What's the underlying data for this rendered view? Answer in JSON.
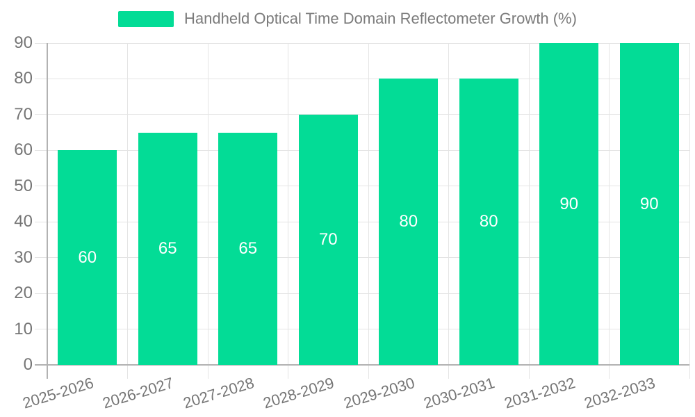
{
  "chart_data": {
    "type": "bar",
    "title": "Handheld Optical Time Domain Reflectometer Growth (%)",
    "categories": [
      "2025-2026",
      "2026-2027",
      "2027-2028",
      "2028-2029",
      "2029-2030",
      "2030-2031",
      "2031-2032",
      "2032-2033"
    ],
    "series": [
      {
        "name": "Handheld Optical Time Domain Reflectometer Growth (%)",
        "values": [
          60,
          65,
          65,
          70,
          80,
          80,
          90,
          90
        ]
      }
    ],
    "y_ticks": [
      0,
      10,
      20,
      30,
      40,
      50,
      60,
      70,
      80,
      90
    ],
    "ylim": [
      0,
      90
    ],
    "xlabel": "",
    "ylabel": "",
    "grid": true,
    "legend_position": "top",
    "colors": {
      "bar": "#03DC96",
      "grid_line": "#e4e4e4",
      "axis_line": "#b2b2b2",
      "tick_label": "#757575",
      "legend_text": "#7b7b7b",
      "value_label": "#ffffff",
      "background": "#ffffff"
    }
  }
}
